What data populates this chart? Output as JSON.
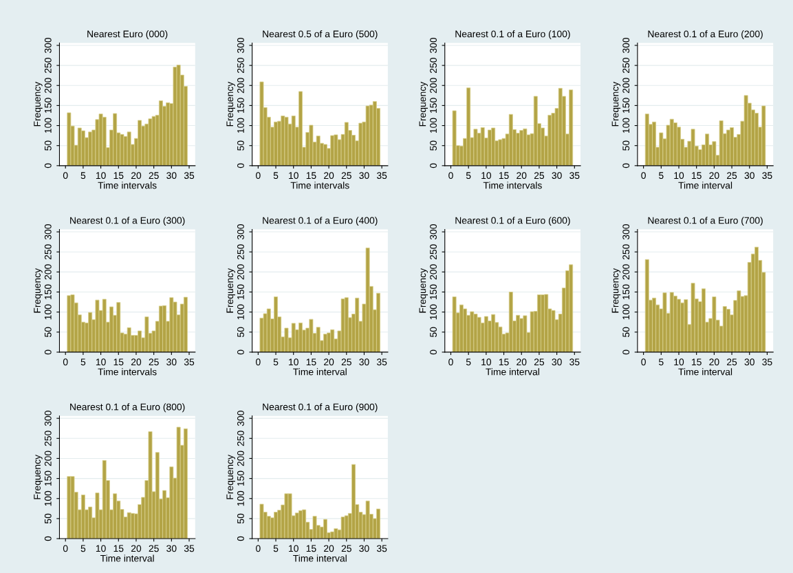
{
  "chart_data": [
    {
      "type": "histogram",
      "title": "Nearest Euro (000)",
      "xlabel": "Time intervals",
      "ylabel": "Frequency",
      "color": "#b3a446",
      "grid": "y",
      "xlim": [
        -1.7,
        36.7
      ],
      "ylim": [
        0,
        306
      ],
      "xticks": [
        0,
        5,
        10,
        15,
        20,
        25,
        30,
        35
      ],
      "yticks": [
        0,
        50,
        100,
        150,
        200,
        250,
        300
      ],
      "bins": [
        0.5,
        1.5,
        2.5,
        3.5,
        4.5,
        5.5,
        6.5,
        7.5,
        8.5,
        9.5,
        10.5,
        11.5,
        12.5,
        13.5,
        14.5,
        15.5,
        16.5,
        17.5,
        18.5,
        19.5,
        20.5,
        21.5,
        22.5,
        23.5,
        24.5,
        25.5,
        26.5,
        27.5,
        28.5,
        29.5,
        30.5,
        31.5,
        32.5,
        33.5,
        34.5
      ],
      "values": [
        132,
        99,
        51,
        94,
        87,
        70,
        84,
        89,
        115,
        129,
        121,
        45,
        89,
        130,
        82,
        78,
        73,
        84,
        53,
        68,
        113,
        99,
        104,
        117,
        123,
        126,
        162,
        148,
        157,
        155,
        246,
        251,
        226,
        198
      ]
    },
    {
      "type": "histogram",
      "title": "Nearest 0.5 of a Euro (500)",
      "xlabel": "Time intervals",
      "ylabel": "Frequency",
      "color": "#b3a446",
      "grid": "y",
      "xlim": [
        -1.7,
        36.7
      ],
      "ylim": [
        0,
        306
      ],
      "xticks": [
        0,
        5,
        10,
        15,
        20,
        25,
        30,
        35
      ],
      "yticks": [
        0,
        50,
        100,
        150,
        200,
        250,
        300
      ],
      "bins": [
        0.5,
        1.5,
        2.5,
        3.5,
        4.5,
        5.5,
        6.5,
        7.5,
        8.5,
        9.5,
        10.5,
        11.5,
        12.5,
        13.5,
        14.5,
        15.5,
        16.5,
        17.5,
        18.5,
        19.5,
        20.5,
        21.5,
        22.5,
        23.5,
        24.5,
        25.5,
        26.5,
        27.5,
        28.5,
        29.5,
        30.5,
        31.5,
        32.5,
        33.5,
        34.5
      ],
      "values": [
        209,
        145,
        121,
        96,
        109,
        111,
        124,
        121,
        104,
        124,
        96,
        185,
        46,
        83,
        101,
        59,
        74,
        56,
        53,
        43,
        75,
        77,
        65,
        78,
        108,
        88,
        76,
        62,
        106,
        109,
        149,
        151,
        160,
        143
      ]
    },
    {
      "type": "histogram",
      "title": "Nearest 0.1 of a Euro (100)",
      "xlabel": "Time intervals",
      "ylabel": "Frequency",
      "color": "#b3a446",
      "grid": "y",
      "xlim": [
        -1.7,
        36.7
      ],
      "ylim": [
        0,
        306
      ],
      "xticks": [
        0,
        5,
        10,
        15,
        20,
        25,
        30,
        35
      ],
      "yticks": [
        0,
        50,
        100,
        150,
        200,
        250,
        300
      ],
      "bins": [
        0.5,
        1.5,
        2.5,
        3.5,
        4.5,
        5.5,
        6.5,
        7.5,
        8.5,
        9.5,
        10.5,
        11.5,
        12.5,
        13.5,
        14.5,
        15.5,
        16.5,
        17.5,
        18.5,
        19.5,
        20.5,
        21.5,
        22.5,
        23.5,
        24.5,
        25.5,
        26.5,
        27.5,
        28.5,
        29.5,
        30.5,
        31.5,
        32.5,
        33.5,
        34.5
      ],
      "values": [
        137,
        50,
        49,
        68,
        194,
        70,
        91,
        81,
        95,
        69,
        89,
        94,
        62,
        65,
        68,
        79,
        128,
        90,
        81,
        88,
        92,
        77,
        80,
        173,
        105,
        94,
        74,
        126,
        131,
        143,
        193,
        173,
        79,
        189
      ]
    },
    {
      "type": "histogram",
      "title": "Nearest 0.1 of a Euro (200)",
      "xlabel": "Time interval",
      "ylabel": "Frequency",
      "color": "#b3a446",
      "grid": "y",
      "xlim": [
        -1.7,
        36.7
      ],
      "ylim": [
        0,
        306
      ],
      "xticks": [
        0,
        5,
        10,
        15,
        20,
        25,
        30,
        35
      ],
      "yticks": [
        0,
        50,
        100,
        150,
        200,
        250,
        300
      ],
      "bins": [
        0.5,
        1.5,
        2.5,
        3.5,
        4.5,
        5.5,
        6.5,
        7.5,
        8.5,
        9.5,
        10.5,
        11.5,
        12.5,
        13.5,
        14.5,
        15.5,
        16.5,
        17.5,
        18.5,
        19.5,
        20.5,
        21.5,
        22.5,
        23.5,
        24.5,
        25.5,
        26.5,
        27.5,
        28.5,
        29.5,
        30.5,
        31.5,
        32.5,
        33.5,
        34.5
      ],
      "values": [
        129,
        103,
        109,
        46,
        82,
        67,
        101,
        116,
        107,
        96,
        66,
        46,
        61,
        91,
        49,
        40,
        52,
        79,
        52,
        60,
        26,
        112,
        80,
        89,
        95,
        71,
        78,
        111,
        175,
        156,
        139,
        131,
        96,
        149
      ]
    },
    {
      "type": "histogram",
      "title": "Nearest 0.1 of a Euro (300)",
      "xlabel": "Time intervals",
      "ylabel": "Frequency",
      "color": "#b3a446",
      "grid": "y",
      "xlim": [
        -1.7,
        36.7
      ],
      "ylim": [
        0,
        306
      ],
      "xticks": [
        0,
        5,
        10,
        15,
        20,
        25,
        30,
        35
      ],
      "yticks": [
        0,
        50,
        100,
        150,
        200,
        250,
        300
      ],
      "bins": [
        0.5,
        1.5,
        2.5,
        3.5,
        4.5,
        5.5,
        6.5,
        7.5,
        8.5,
        9.5,
        10.5,
        11.5,
        12.5,
        13.5,
        14.5,
        15.5,
        16.5,
        17.5,
        18.5,
        19.5,
        20.5,
        21.5,
        22.5,
        23.5,
        24.5,
        25.5,
        26.5,
        27.5,
        28.5,
        29.5,
        30.5,
        31.5,
        32.5,
        33.5,
        34.5
      ],
      "values": [
        141,
        143,
        123,
        93,
        75,
        73,
        99,
        81,
        130,
        104,
        132,
        75,
        113,
        92,
        124,
        48,
        45,
        61,
        42,
        42,
        53,
        36,
        88,
        47,
        53,
        77,
        115,
        116,
        77,
        136,
        125,
        93,
        120,
        137
      ]
    },
    {
      "type": "histogram",
      "title": "Nearest 0.1 of a Euro (400)",
      "xlabel": "Time interval",
      "ylabel": "Frequency",
      "color": "#b3a446",
      "grid": "y",
      "xlim": [
        -1.7,
        36.7
      ],
      "ylim": [
        0,
        306
      ],
      "xticks": [
        0,
        5,
        10,
        15,
        20,
        25,
        30,
        35
      ],
      "yticks": [
        0,
        50,
        100,
        150,
        200,
        250,
        300
      ],
      "bins": [
        0.5,
        1.5,
        2.5,
        3.5,
        4.5,
        5.5,
        6.5,
        7.5,
        8.5,
        9.5,
        10.5,
        11.5,
        12.5,
        13.5,
        14.5,
        15.5,
        16.5,
        17.5,
        18.5,
        19.5,
        20.5,
        21.5,
        22.5,
        23.5,
        24.5,
        25.5,
        26.5,
        27.5,
        28.5,
        29.5,
        30.5,
        31.5,
        32.5,
        33.5,
        34.5
      ],
      "values": [
        85,
        96,
        108,
        83,
        138,
        88,
        38,
        60,
        36,
        72,
        56,
        73,
        55,
        60,
        82,
        47,
        62,
        29,
        45,
        48,
        56,
        33,
        53,
        133,
        136,
        86,
        95,
        135,
        77,
        120,
        260,
        164,
        106,
        147
      ]
    },
    {
      "type": "histogram",
      "title": "Nearest 0.1 of a Euro (600)",
      "xlabel": "Time interval",
      "ylabel": "Frequency",
      "color": "#b3a446",
      "grid": "y",
      "xlim": [
        -1.7,
        36.7
      ],
      "ylim": [
        0,
        306
      ],
      "xticks": [
        0,
        5,
        10,
        15,
        20,
        25,
        30,
        35
      ],
      "yticks": [
        0,
        50,
        100,
        150,
        200,
        250,
        300
      ],
      "bins": [
        0.5,
        1.5,
        2.5,
        3.5,
        4.5,
        5.5,
        6.5,
        7.5,
        8.5,
        9.5,
        10.5,
        11.5,
        12.5,
        13.5,
        14.5,
        15.5,
        16.5,
        17.5,
        18.5,
        19.5,
        20.5,
        21.5,
        22.5,
        23.5,
        24.5,
        25.5,
        26.5,
        27.5,
        28.5,
        29.5,
        30.5,
        31.5,
        32.5,
        33.5,
        34.5
      ],
      "values": [
        138,
        98,
        118,
        108,
        92,
        101,
        95,
        87,
        73,
        89,
        78,
        94,
        74,
        63,
        45,
        48,
        150,
        78,
        92,
        84,
        91,
        49,
        101,
        102,
        143,
        143,
        144,
        108,
        104,
        81,
        95,
        160,
        203,
        218
      ]
    },
    {
      "type": "histogram",
      "title": "Nearest 0.1 of a Euro (700)",
      "xlabel": "Time interval",
      "ylabel": "Frequency",
      "color": "#b3a446",
      "grid": "y",
      "xlim": [
        -1.7,
        36.7
      ],
      "ylim": [
        0,
        306
      ],
      "xticks": [
        0,
        5,
        10,
        15,
        20,
        25,
        30,
        35
      ],
      "yticks": [
        0,
        50,
        100,
        150,
        200,
        250,
        300
      ],
      "bins": [
        0.5,
        1.5,
        2.5,
        3.5,
        4.5,
        5.5,
        6.5,
        7.5,
        8.5,
        9.5,
        10.5,
        11.5,
        12.5,
        13.5,
        14.5,
        15.5,
        16.5,
        17.5,
        18.5,
        19.5,
        20.5,
        21.5,
        22.5,
        23.5,
        24.5,
        25.5,
        26.5,
        27.5,
        28.5,
        29.5,
        30.5,
        31.5,
        32.5,
        33.5,
        34.5
      ],
      "values": [
        231,
        130,
        135,
        118,
        108,
        148,
        97,
        149,
        140,
        132,
        123,
        131,
        69,
        172,
        133,
        126,
        158,
        75,
        84,
        138,
        80,
        65,
        114,
        107,
        93,
        129,
        153,
        139,
        141,
        224,
        245,
        262,
        229,
        199
      ]
    },
    {
      "type": "histogram",
      "title": "Nearest 0.1 of a Euro (800)",
      "xlabel": "Time interval",
      "ylabel": "Frequency",
      "color": "#b3a446",
      "grid": "y",
      "xlim": [
        -1.7,
        36.7
      ],
      "ylim": [
        0,
        306
      ],
      "xticks": [
        0,
        5,
        10,
        15,
        20,
        25,
        30,
        35
      ],
      "yticks": [
        0,
        50,
        100,
        150,
        200,
        250,
        300
      ],
      "bins": [
        0.5,
        1.5,
        2.5,
        3.5,
        4.5,
        5.5,
        6.5,
        7.5,
        8.5,
        9.5,
        10.5,
        11.5,
        12.5,
        13.5,
        14.5,
        15.5,
        16.5,
        17.5,
        18.5,
        19.5,
        20.5,
        21.5,
        22.5,
        23.5,
        24.5,
        25.5,
        26.5,
        27.5,
        28.5,
        29.5,
        30.5,
        31.5,
        32.5,
        33.5,
        34.5
      ],
      "values": [
        155,
        155,
        116,
        72,
        109,
        72,
        79,
        52,
        114,
        72,
        195,
        145,
        72,
        112,
        94,
        73,
        54,
        65,
        63,
        62,
        85,
        103,
        145,
        267,
        117,
        215,
        99,
        120,
        102,
        179,
        151,
        278,
        233,
        274
      ]
    },
    {
      "type": "histogram",
      "title": "Nearest 0.1 of a Euro (900)",
      "xlabel": "Time interval",
      "ylabel": "Frequency",
      "color": "#b3a446",
      "grid": "y",
      "xlim": [
        -1.7,
        36.7
      ],
      "ylim": [
        0,
        306
      ],
      "xticks": [
        0,
        5,
        10,
        15,
        20,
        25,
        30,
        35
      ],
      "yticks": [
        0,
        50,
        100,
        150,
        200,
        250,
        300
      ],
      "bins": [
        0.5,
        1.5,
        2.5,
        3.5,
        4.5,
        5.5,
        6.5,
        7.5,
        8.5,
        9.5,
        10.5,
        11.5,
        12.5,
        13.5,
        14.5,
        15.5,
        16.5,
        17.5,
        18.5,
        19.5,
        20.5,
        21.5,
        22.5,
        23.5,
        24.5,
        25.5,
        26.5,
        27.5,
        28.5,
        29.5,
        30.5,
        31.5,
        32.5,
        33.5,
        34.5
      ],
      "values": [
        86,
        66,
        56,
        52,
        66,
        71,
        84,
        112,
        112,
        57,
        64,
        70,
        72,
        41,
        23,
        56,
        33,
        29,
        48,
        15,
        17,
        25,
        22,
        54,
        57,
        63,
        185,
        85,
        66,
        60,
        94,
        61,
        50,
        74
      ]
    }
  ]
}
